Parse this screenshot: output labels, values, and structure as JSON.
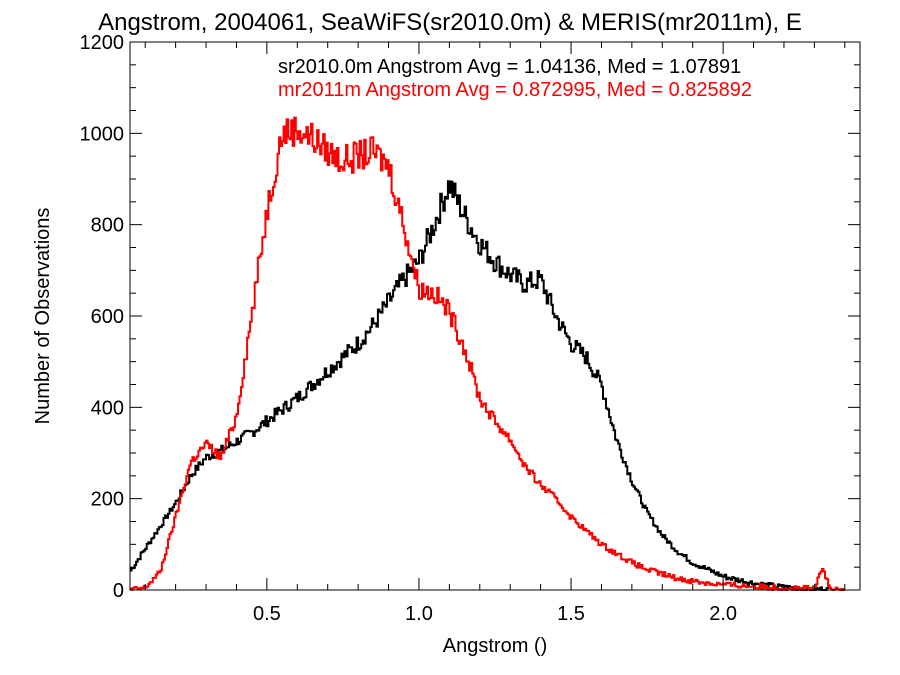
{
  "chart_data": {
    "type": "line",
    "title": "Angstrom, 2004061, SeaWiFS(sr2010.0m) & MERIS(mr2011m), E",
    "xlabel": "Angstrom ()",
    "ylabel": "Number of Observations",
    "xlim": [
      0.05,
      2.45
    ],
    "ylim": [
      0,
      1200
    ],
    "xticks": [
      0.5,
      1.0,
      1.5,
      2.0
    ],
    "xtick_labels": [
      "0.5",
      "1.0",
      "1.5",
      "2.0"
    ],
    "yticks": [
      0,
      200,
      400,
      600,
      800,
      1000,
      1200
    ],
    "ytick_labels": [
      "0",
      "200",
      "400",
      "600",
      "800",
      "1000",
      "1200"
    ],
    "grid": false,
    "legend_placement": "top-right",
    "series": [
      {
        "name": "sr2010.0m",
        "legend": "sr2010.0m Angstrom Avg = 1.04136, Med = 1.07891",
        "color": "#000000",
        "x": [
          0.05,
          0.1,
          0.15,
          0.2,
          0.25,
          0.3,
          0.35,
          0.4,
          0.45,
          0.5,
          0.55,
          0.6,
          0.65,
          0.7,
          0.75,
          0.8,
          0.85,
          0.9,
          0.95,
          1.0,
          1.05,
          1.1,
          1.15,
          1.2,
          1.25,
          1.3,
          1.35,
          1.4,
          1.45,
          1.5,
          1.55,
          1.6,
          1.65,
          1.7,
          1.75,
          1.8,
          1.85,
          1.9,
          1.95,
          2.0,
          2.05,
          2.1,
          2.15,
          2.2,
          2.25,
          2.3,
          2.35
        ],
        "y": [
          40,
          90,
          140,
          190,
          250,
          290,
          305,
          325,
          345,
          370,
          395,
          420,
          450,
          480,
          510,
          540,
          580,
          630,
          680,
          720,
          800,
          890,
          820,
          760,
          720,
          690,
          670,
          680,
          600,
          540,
          510,
          450,
          330,
          240,
          170,
          120,
          85,
          60,
          45,
          30,
          22,
          15,
          10,
          6,
          4,
          2,
          1
        ]
      },
      {
        "name": "mr2011m",
        "legend": "mr2011m Angstrom Avg = 0.872995, Med = 0.825892",
        "color": "#ff0000",
        "x": [
          0.05,
          0.1,
          0.15,
          0.2,
          0.25,
          0.3,
          0.35,
          0.4,
          0.45,
          0.5,
          0.55,
          0.6,
          0.65,
          0.7,
          0.75,
          0.8,
          0.85,
          0.9,
          0.95,
          1.0,
          1.05,
          1.1,
          1.15,
          1.2,
          1.25,
          1.3,
          1.35,
          1.4,
          1.45,
          1.5,
          1.55,
          1.6,
          1.65,
          1.7,
          1.75,
          1.8,
          1.85,
          1.9,
          1.95,
          2.0,
          2.05,
          2.1,
          2.15,
          2.2,
          2.25,
          2.3,
          2.33,
          2.35,
          2.4
        ],
        "y": [
          0,
          5,
          40,
          160,
          280,
          320,
          290,
          380,
          600,
          830,
          1000,
          1010,
          990,
          960,
          940,
          950,
          960,
          930,
          800,
          660,
          650,
          610,
          530,
          420,
          370,
          330,
          270,
          230,
          200,
          160,
          130,
          100,
          80,
          60,
          45,
          35,
          25,
          20,
          15,
          12,
          10,
          8,
          6,
          5,
          4,
          3,
          50,
          0,
          0
        ]
      }
    ]
  }
}
